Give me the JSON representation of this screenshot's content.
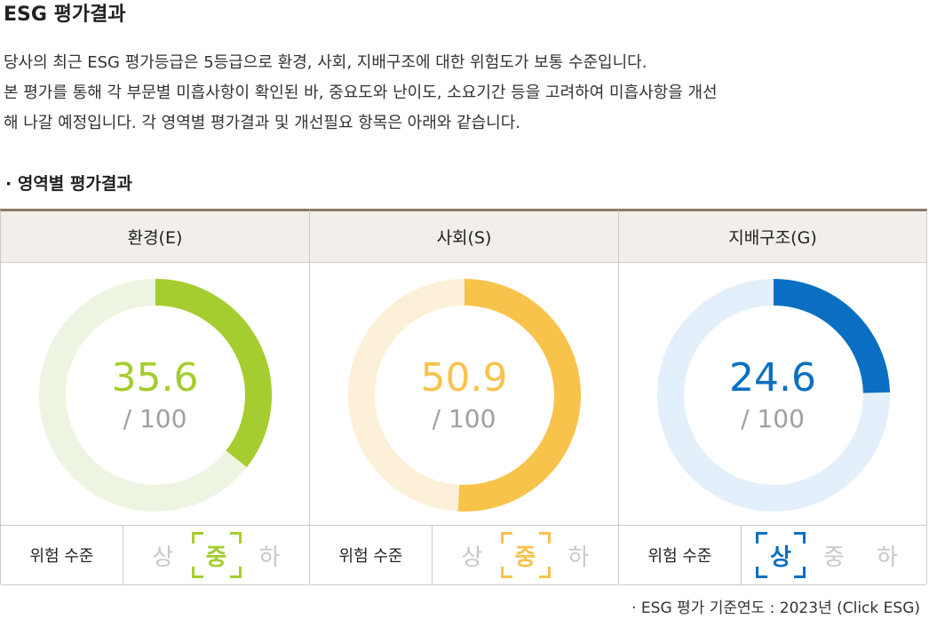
{
  "page": {
    "title": "ESG 평가결과",
    "intro": [
      "당사의 최근 ESG 평가등급은 5등급으로 환경, 사회, 지배구조에 대한 위험도가 보통 수준입니다.",
      "본 평가를 통해 각 부문별 미흡사항이 확인된 바, 중요도와 난이도, 소요기간 등을 고려하여 미흡사항을 개선",
      "해 나갈 예정입니다. 각 영역별 평가결과 및 개선필요 항목은 아래와 같습니다."
    ],
    "section_title": "· 영역별 평가결과",
    "footnote": "· ESG 평가 기준연도 : 2023년 (Click ESG)"
  },
  "risk_label": "위험 수준",
  "categories": [
    {
      "name": "환경(E)",
      "score": "35.6",
      "score_value": 35.6,
      "out_of": "/ 100",
      "color": "#a5cd2f",
      "track": "#eef4e2",
      "levels": [
        "상",
        "중",
        "하"
      ],
      "active_level": 1
    },
    {
      "name": "사회(S)",
      "score": "50.9",
      "score_value": 50.9,
      "out_of": "/ 100",
      "color": "#f8c34a",
      "track": "#fdf0d8",
      "levels": [
        "상",
        "중",
        "하"
      ],
      "active_level": 1
    },
    {
      "name": "지배구조(G)",
      "score": "24.6",
      "score_value": 24.6,
      "out_of": "/ 100",
      "color": "#0a6fc2",
      "track": "#e3f0fb",
      "levels": [
        "상",
        "중",
        "하"
      ],
      "active_level": 0
    }
  ]
}
